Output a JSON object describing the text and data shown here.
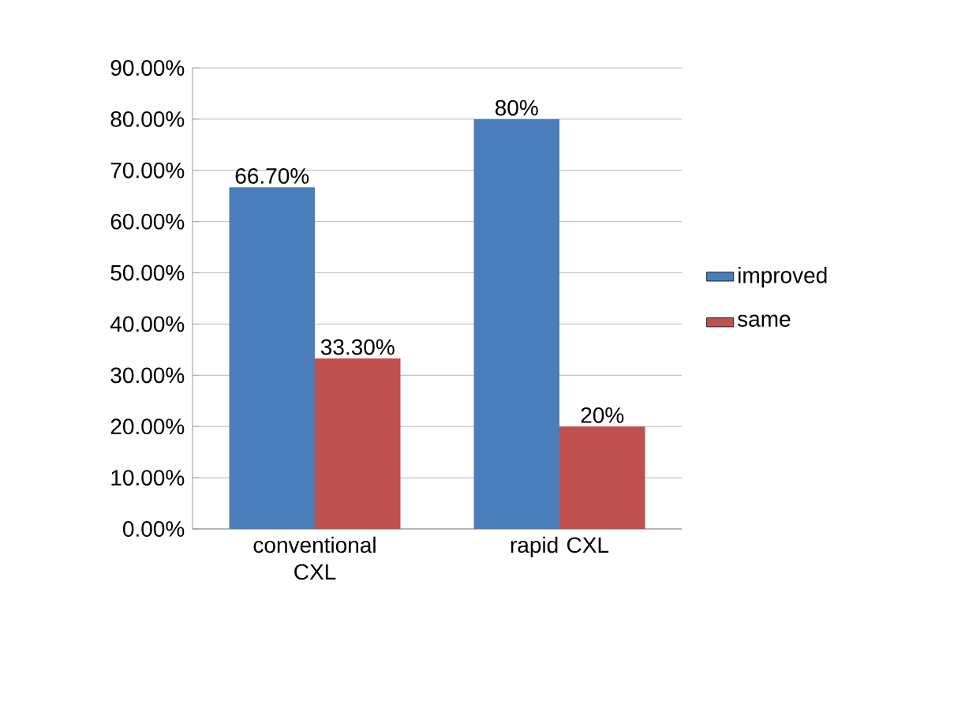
{
  "chart_data": {
    "type": "bar",
    "categories": [
      "conventional CXL",
      "rapid CXL"
    ],
    "series": [
      {
        "name": "improved",
        "color": "#4a7ebb",
        "values": [
          66.7,
          80
        ],
        "value_labels": [
          "66.70%",
          "80%"
        ]
      },
      {
        "name": "same",
        "color": "#c0504d",
        "values": [
          33.3,
          20
        ],
        "value_labels": [
          "33.30%",
          "20%"
        ]
      }
    ],
    "ylim": [
      0,
      90
    ],
    "yticks": [
      {
        "value": 0,
        "label": "0.00%"
      },
      {
        "value": 10,
        "label": "10.00%"
      },
      {
        "value": 20,
        "label": "20.00%"
      },
      {
        "value": 30,
        "label": "30.00%"
      },
      {
        "value": 40,
        "label": "40.00%"
      },
      {
        "value": 50,
        "label": "50.00%"
      },
      {
        "value": 60,
        "label": "60.00%"
      },
      {
        "value": 70,
        "label": "70.00%"
      },
      {
        "value": 80,
        "label": "80.00%"
      },
      {
        "value": 90,
        "label": "90.00%"
      }
    ],
    "grid": "y",
    "legend": "right"
  }
}
